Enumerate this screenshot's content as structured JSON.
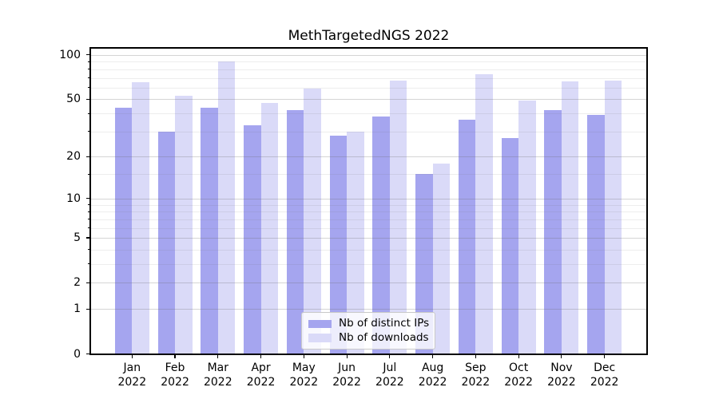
{
  "title": "MethTargetedNGS 2022",
  "chart_data": {
    "type": "bar",
    "title": "MethTargetedNGS 2022",
    "categories": [
      "Jan",
      "Feb",
      "Mar",
      "Apr",
      "May",
      "Jun",
      "Jul",
      "Aug",
      "Sep",
      "Oct",
      "Nov",
      "Dec"
    ],
    "x_tick_second_line": "2022",
    "series": [
      {
        "name": "Nb of distinct IPs",
        "color": "#a5a5ef",
        "values": [
          44,
          30,
          44,
          33,
          42,
          28,
          38,
          15,
          36,
          27,
          42,
          39
        ]
      },
      {
        "name": "Nb of downloads",
        "color": "#dadaf8",
        "values": [
          65,
          53,
          90,
          47,
          59,
          30,
          67,
          18,
          74,
          49,
          66,
          67
        ]
      }
    ],
    "xlabel": "",
    "ylabel": "",
    "yscale": "log1p",
    "ylim": [
      0,
      111
    ],
    "yticks": [
      100,
      50,
      20,
      10,
      5,
      2,
      1,
      0
    ],
    "ytick_labels": [
      "100",
      "50",
      "20",
      "10",
      "5",
      "2",
      "1",
      "0"
    ],
    "minor_grid_values": [
      3,
      4,
      6,
      7,
      8,
      9,
      15,
      30,
      40,
      60,
      70,
      80,
      90
    ],
    "grid": true,
    "legend": {
      "position": "lower center",
      "items": [
        "Nb of distinct IPs",
        "Nb of downloads"
      ]
    },
    "accent_colors": {
      "distinct_ips": "#a5a5ef",
      "downloads": "#dadaf8"
    }
  }
}
